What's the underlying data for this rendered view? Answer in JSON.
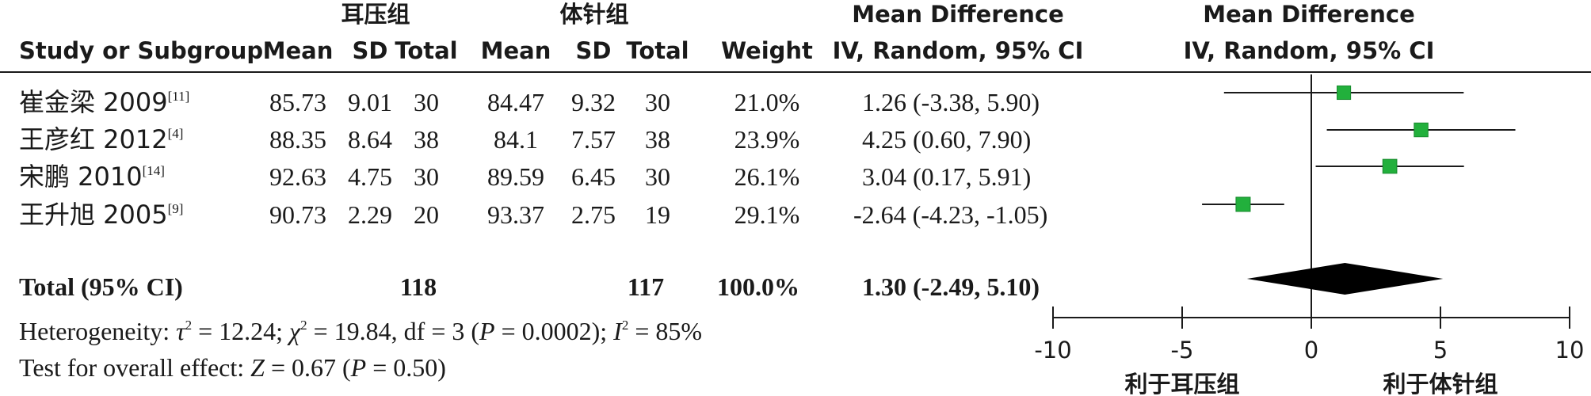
{
  "chart_data": {
    "type": "forest",
    "headers": {
      "group1": "耳压组",
      "group2": "体针组",
      "study": "Study or Subgroup",
      "mean1": "Mean",
      "sd1": "SD",
      "total1": "Total",
      "mean2": "Mean",
      "sd2": "SD",
      "total2": "Total",
      "weight": "Weight",
      "md_title": "Mean Difference",
      "md_method": "IV, Random, 95% CI",
      "plot_title": "Mean Difference",
      "plot_method": "IV, Random, 95% CI"
    },
    "studies": [
      {
        "name": "崔金梁 2009",
        "ref": "[11]",
        "mean1": "85.73",
        "sd1": "9.01",
        "n1": "30",
        "mean2": "84.47",
        "sd2": "9.32",
        "n2": "30",
        "weight": "21.0%",
        "ci_text": "1.26 (-3.38, 5.90)",
        "md": 1.26,
        "lo": -3.38,
        "hi": 5.9
      },
      {
        "name": "王彦红 2012",
        "ref": "[4]",
        "mean1": "88.35",
        "sd1": "8.64",
        "n1": "38",
        "mean2": "84.1",
        "sd2": "7.57",
        "n2": "38",
        "weight": "23.9%",
        "ci_text": "4.25 (0.60, 7.90)",
        "md": 4.25,
        "lo": 0.6,
        "hi": 7.9
      },
      {
        "name": "宋鹏 2010",
        "ref": "[14]",
        "mean1": "92.63",
        "sd1": "4.75",
        "n1": "30",
        "mean2": "89.59",
        "sd2": "6.45",
        "n2": "30",
        "weight": "26.1%",
        "ci_text": "3.04 (0.17, 5.91)",
        "md": 3.04,
        "lo": 0.17,
        "hi": 5.91
      },
      {
        "name": "王升旭 2005",
        "ref": "[9]",
        "mean1": "90.73",
        "sd1": "2.29",
        "n1": "20",
        "mean2": "93.37",
        "sd2": "2.75",
        "n2": "19",
        "weight": "29.1%",
        "ci_text": "-2.64 (-4.23, -1.05)",
        "md": -2.64,
        "lo": -4.23,
        "hi": -1.05
      }
    ],
    "total": {
      "label": "Total (95% CI)",
      "n1": "118",
      "n2": "117",
      "weight": "100.0%",
      "ci_text": "1.30 (-2.49, 5.10)",
      "md": 1.3,
      "lo": -2.49,
      "hi": 5.1
    },
    "heterogeneity": {
      "label": "Heterogeneity: ",
      "tau_sym": "τ",
      "tau_val": " = 12.24; ",
      "chi_sym": "χ",
      "chi_val": " = 19.84, df = 3 (",
      "p_sym": "P",
      "p_val": " = 0.0002); ",
      "i_sym": "I",
      "i_val": " = 85%",
      "sq": "2"
    },
    "overall": {
      "label": "Test for overall effect: ",
      "z_sym": "Z",
      "z_val": " = 0.67 (",
      "p_sym": "P",
      "p_val": " = 0.50)"
    },
    "axis": {
      "xlim": [
        -10,
        10
      ],
      "ticks": [
        -10,
        -5,
        0,
        5,
        10
      ],
      "tick_labels": [
        "-10",
        "-5",
        "0",
        "5",
        "10"
      ],
      "left_label": "利于耳压组",
      "right_label": "利于体针组"
    },
    "colors": {
      "marker": "#22b03c",
      "line": "#1a1a1a",
      "diamond": "#000000"
    }
  }
}
